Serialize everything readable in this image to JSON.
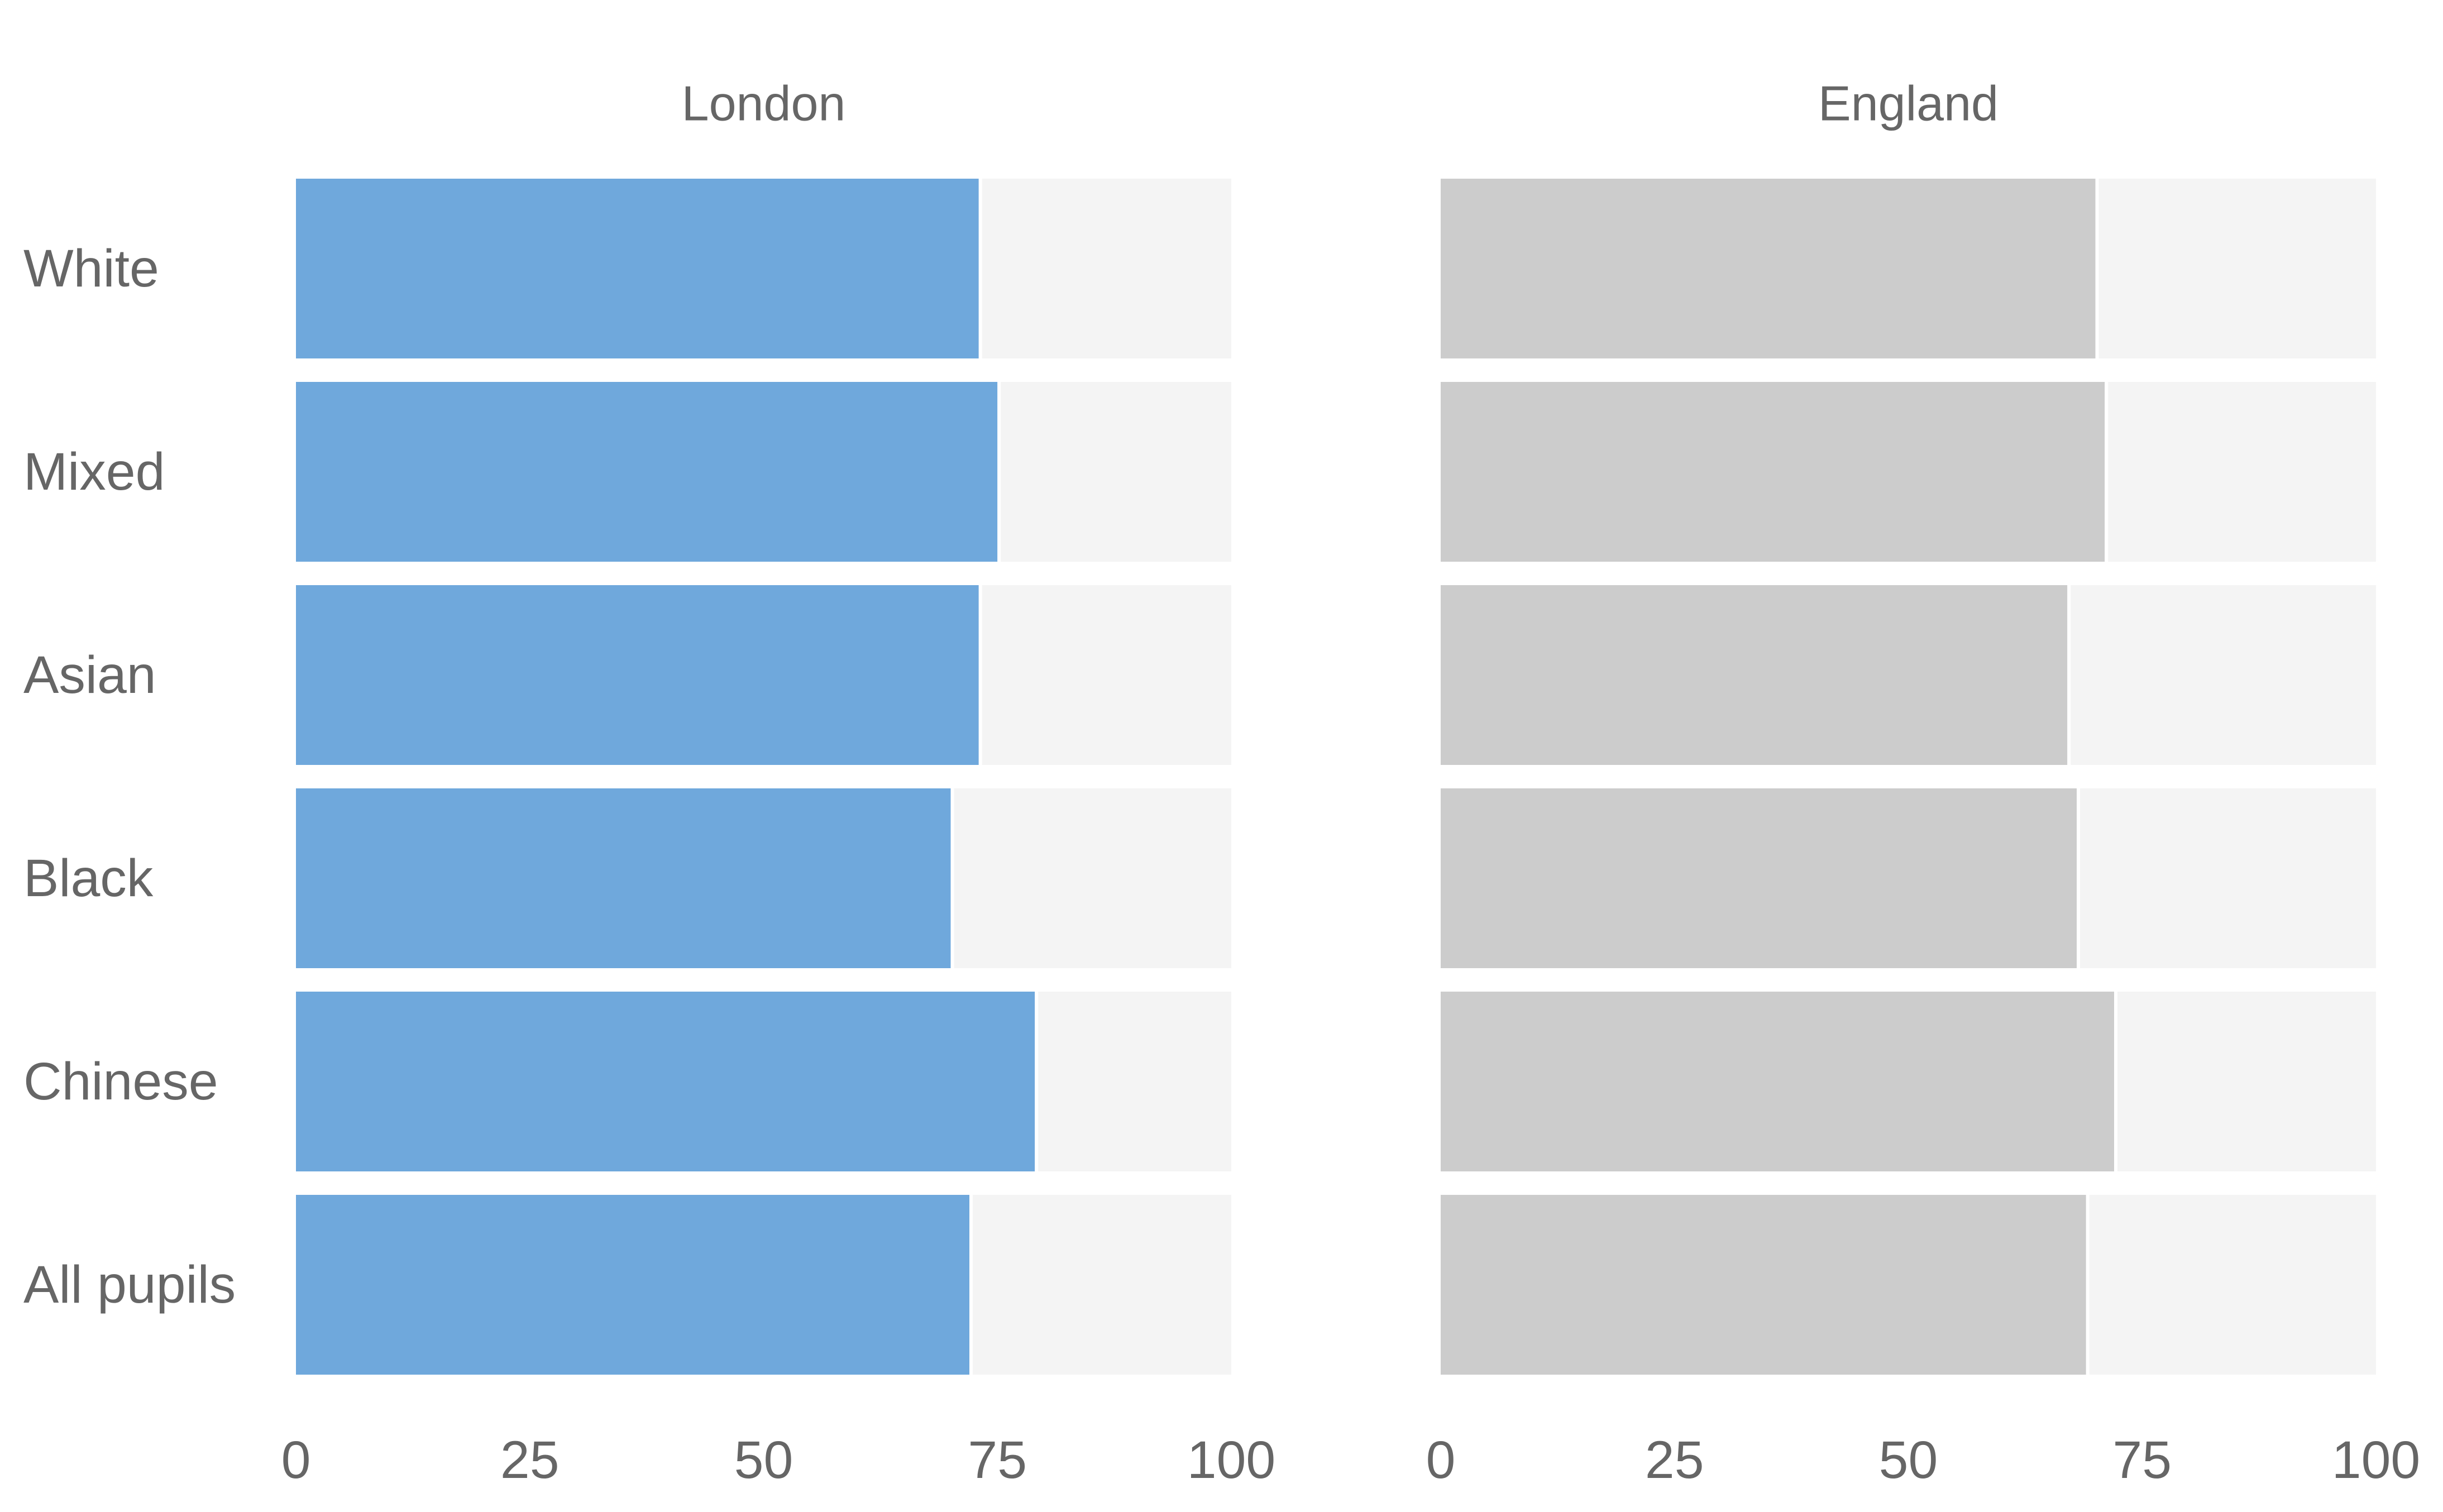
{
  "chart_data": {
    "type": "bar",
    "orientation": "horizontal",
    "categories": [
      "White",
      "Mixed",
      "Asian",
      "Black",
      "Chinese",
      "All pupils"
    ],
    "xlim": [
      0,
      100
    ],
    "ticks": [
      0,
      25,
      50,
      75,
      100
    ],
    "panels": [
      {
        "title": "London",
        "color": "#6fa8dc",
        "values": [
          73,
          75,
          73,
          70,
          79,
          72
        ]
      },
      {
        "title": "England",
        "color": "#cccccc",
        "values": [
          70,
          71,
          67,
          68,
          72,
          69
        ]
      }
    ],
    "track_color": "#f4f4f4",
    "text_color": "#666666",
    "grid": false,
    "legend": "none"
  }
}
